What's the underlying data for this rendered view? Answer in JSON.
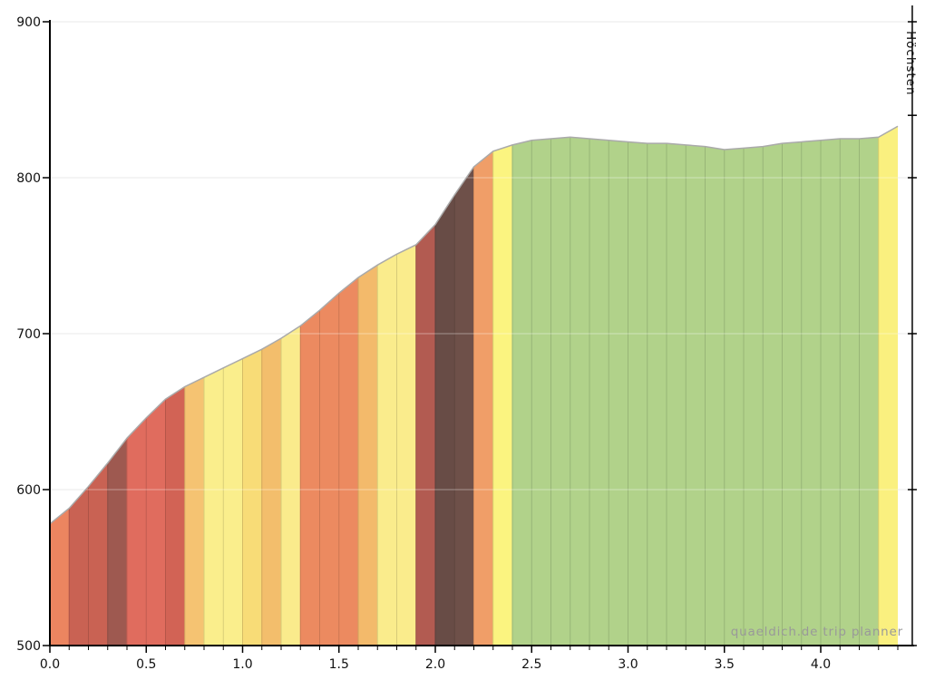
{
  "chart_data": {
    "type": "area",
    "title": "",
    "xlabel": "",
    "ylabel": "",
    "x_unit": "km",
    "y_unit": "m",
    "xlim": [
      0,
      4.48
    ],
    "ylim": [
      500,
      900
    ],
    "grid": true,
    "y_ticks": [
      500,
      600,
      700,
      800,
      900
    ],
    "y_tick_labels": [
      "500",
      "600",
      "700",
      "800",
      "900"
    ],
    "x_major_ticks": [
      0,
      0.5,
      1,
      1.5,
      2,
      2.5,
      3,
      3.5,
      4
    ],
    "x_major_tick_labels": [
      "0.0",
      "0.5",
      "1.0",
      "1.5",
      "2.0",
      "2.5",
      "3.0",
      "3.5",
      "4.0"
    ],
    "x_minor_tick_step": 0.1,
    "profile_end_km": 4.4,
    "elevation_profile": {
      "distance_km": [
        0.0,
        0.1,
        0.2,
        0.3,
        0.4,
        0.5,
        0.6,
        0.7,
        0.8,
        0.9,
        1.0,
        1.1,
        1.2,
        1.3,
        1.4,
        1.5,
        1.6,
        1.7,
        1.8,
        1.9,
        2.0,
        2.1,
        2.2,
        2.3,
        2.4,
        2.5,
        2.6,
        2.7,
        2.8,
        2.9,
        3.0,
        3.1,
        3.2,
        3.3,
        3.4,
        3.5,
        3.6,
        3.7,
        3.8,
        3.9,
        4.0,
        4.1,
        4.2,
        4.3,
        4.4
      ],
      "elevation_m": [
        578,
        588,
        602,
        617,
        633,
        646,
        658,
        666,
        672,
        678,
        684,
        690,
        697,
        705,
        715,
        726,
        736,
        744,
        751,
        757,
        770,
        789,
        807,
        817,
        821,
        824,
        825,
        826,
        825,
        824,
        823,
        822,
        822,
        821,
        820,
        818,
        819,
        820,
        822,
        823,
        824,
        825,
        825,
        826,
        833
      ],
      "segment_colors": [
        "#EC8560",
        "#C96253",
        "#C96253",
        "#9E5950",
        "#E06C5E",
        "#E06C5E",
        "#D26355",
        "#F5C372",
        "#FAEE8C",
        "#FAEE8C",
        "#F8DC77",
        "#F3BE6C",
        "#FAEB8C",
        "#EC8A60",
        "#EC8A60",
        "#EC8A60",
        "#F3BA6B",
        "#FAEC8C",
        "#FAEC8C",
        "#B25B51",
        "#684C46",
        "#6E5049",
        "#F09E68",
        "#FBF480",
        "#B1D28A",
        "#B1D28A",
        "#B1D28A",
        "#B1D28A",
        "#B1D28A",
        "#B1D28A",
        "#B1D28A",
        "#B1D28A",
        "#B1D28A",
        "#B1D28A",
        "#B1D28A",
        "#B1D28A",
        "#B1D28A",
        "#B1D28A",
        "#B1D28A",
        "#B1D28A",
        "#B1D28A",
        "#B1D28A",
        "#B1D28A",
        "#FAF07F"
      ]
    },
    "summit_marker": {
      "label": "Höchsten",
      "position_km": 4.475,
      "tick_elevations_m": [
        900,
        840,
        800,
        700,
        600,
        500
      ]
    },
    "watermark": "quaeldich.de trip planner"
  },
  "colors": {
    "background": "#ffffff",
    "grid": "#dddddd",
    "grid_overlay": "rgba(255,255,255,0.4)",
    "axis": "#000000",
    "tick_label": "#111111",
    "profile_outline": "#aaaaaa",
    "marker_line": "#000000",
    "watermark_text": "#999999"
  }
}
